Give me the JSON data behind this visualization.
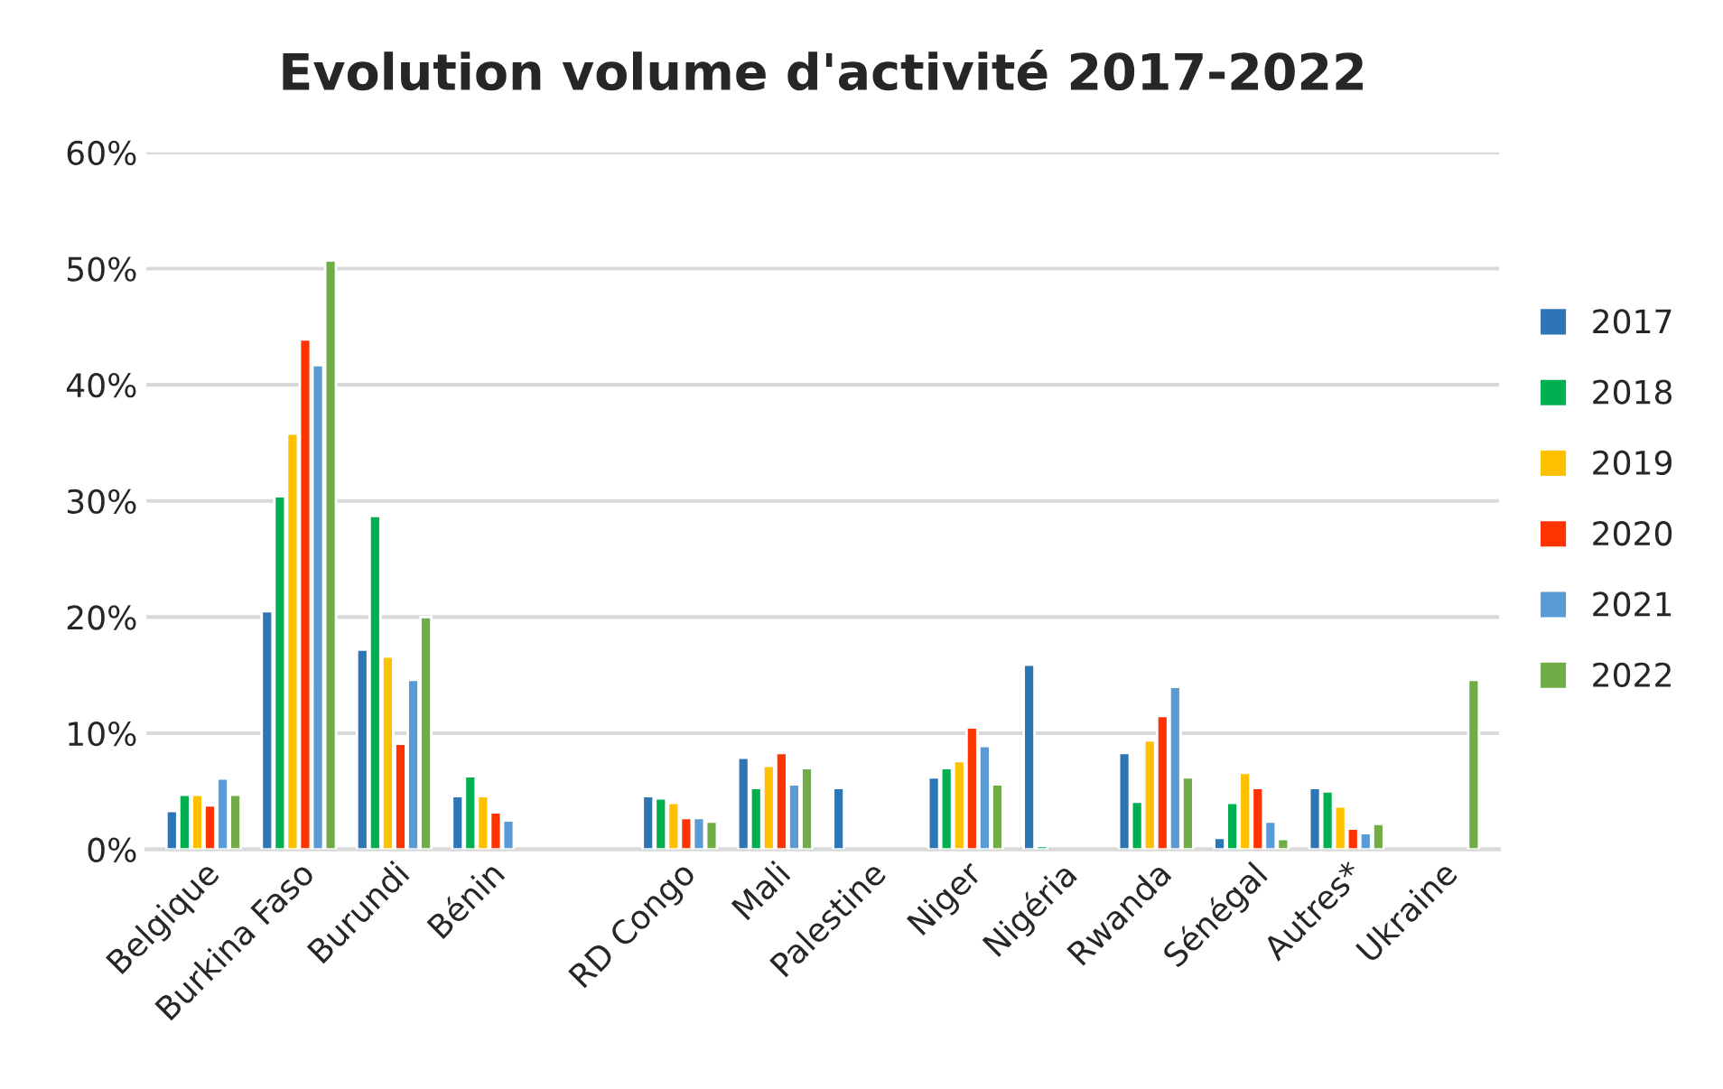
{
  "chart_data": {
    "type": "bar",
    "title": "Evolution volume d'activité 2017-2022",
    "categories": [
      "Belgique",
      "Burkina Faso",
      "Burundi",
      "Bénin",
      null,
      "RD Congo",
      "Mali",
      "Palestine",
      "Niger",
      "Nigéria",
      "Rwanda",
      "Sénégal",
      "Autres*",
      "Ukraine"
    ],
    "series": [
      {
        "name": "2017",
        "color": "#2e75b6",
        "values": [
          3.3,
          20.5,
          17.2,
          4.6,
          null,
          4.6,
          7.9,
          5.3,
          6.2,
          15.9,
          8.3,
          1.0,
          5.3,
          null
        ]
      },
      {
        "name": "2018",
        "color": "#00b050",
        "values": [
          4.7,
          30.4,
          28.7,
          6.3,
          null,
          4.4,
          5.3,
          null,
          7.0,
          0.3,
          4.1,
          4.0,
          5.0,
          null
        ]
      },
      {
        "name": "2019",
        "color": "#ffc000",
        "values": [
          4.7,
          35.8,
          16.6,
          4.6,
          null,
          4.0,
          7.2,
          null,
          7.6,
          null,
          9.4,
          6.6,
          3.7,
          null
        ]
      },
      {
        "name": "2020",
        "color": "#ff3300",
        "values": [
          3.8,
          43.9,
          9.1,
          3.2,
          null,
          2.7,
          8.3,
          null,
          10.5,
          null,
          11.5,
          5.3,
          1.8,
          null
        ]
      },
      {
        "name": "2021",
        "color": "#5b9bd5",
        "values": [
          6.1,
          41.7,
          14.6,
          2.5,
          null,
          2.7,
          5.6,
          null,
          8.9,
          null,
          14.0,
          2.4,
          1.4,
          null
        ]
      },
      {
        "name": "2022",
        "color": "#70ad47",
        "values": [
          4.7,
          50.7,
          20.0,
          null,
          null,
          2.4,
          7.0,
          null,
          5.6,
          null,
          6.2,
          0.9,
          2.2,
          14.6
        ]
      }
    ],
    "ylim": [
      0,
      60
    ],
    "yticks": [
      {
        "value": 0,
        "label": "0%"
      },
      {
        "value": 10,
        "label": "10%"
      },
      {
        "value": 20,
        "label": "20%"
      },
      {
        "value": 30,
        "label": "30%"
      },
      {
        "value": 40,
        "label": "40%"
      },
      {
        "value": 50,
        "label": "50%"
      },
      {
        "value": 60,
        "label": "60%"
      }
    ],
    "grid": "y",
    "legend": "right"
  }
}
